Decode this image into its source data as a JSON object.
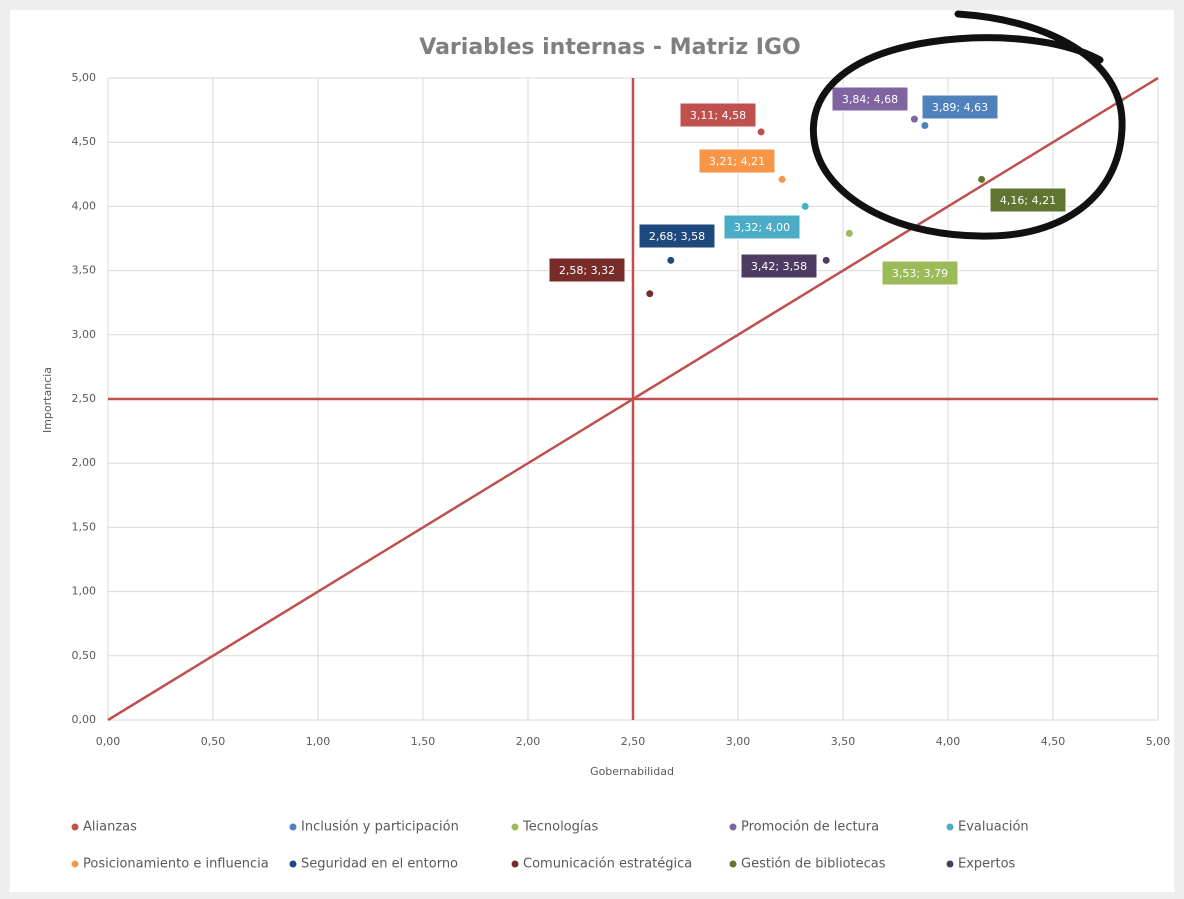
{
  "chart_data": {
    "type": "scatter",
    "title": "Variables internas - Matriz IGO",
    "xlabel": "Gobernabilidad",
    "ylabel": "Importancia",
    "xlim": [
      0,
      5
    ],
    "ylim": [
      0,
      5
    ],
    "xticks": [
      {
        "value": 0,
        "label": "0,00"
      },
      {
        "value": 0.5,
        "label": "0,50"
      },
      {
        "value": 1,
        "label": "1,00"
      },
      {
        "value": 1.5,
        "label": "1,50"
      },
      {
        "value": 2,
        "label": "2,00"
      },
      {
        "value": 2.5,
        "label": "2,50"
      },
      {
        "value": 3,
        "label": "3,00"
      },
      {
        "value": 3.5,
        "label": "3,50"
      },
      {
        "value": 4,
        "label": "4,00"
      },
      {
        "value": 4.5,
        "label": "4,50"
      },
      {
        "value": 5,
        "label": "5,00"
      }
    ],
    "yticks": [
      {
        "value": 0,
        "label": "0,00"
      },
      {
        "value": 0.5,
        "label": "0,50"
      },
      {
        "value": 1,
        "label": "1,00"
      },
      {
        "value": 1.5,
        "label": "1,50"
      },
      {
        "value": 2,
        "label": "2,00"
      },
      {
        "value": 2.5,
        "label": "2,50"
      },
      {
        "value": 3,
        "label": "3,00"
      },
      {
        "value": 3.5,
        "label": "3,50"
      },
      {
        "value": 4,
        "label": "4,00"
      },
      {
        "value": 4.5,
        "label": "4,50"
      },
      {
        "value": 5,
        "label": "5,00"
      }
    ],
    "grid": true,
    "legend": "bottom",
    "reference_lines": [
      {
        "color": "#c0504d",
        "x": [
          0,
          5
        ],
        "y": [
          0,
          5
        ]
      },
      {
        "color": "#c0504d",
        "x": [
          2.5,
          2.5
        ],
        "y": [
          0,
          5
        ]
      },
      {
        "color": "#c0504d",
        "x": [
          0,
          5
        ],
        "y": [
          2.5,
          2.5
        ]
      }
    ],
    "series": [
      {
        "name": "Alianzas",
        "color": "#c0504d",
        "x": [
          3.11
        ],
        "values": [
          4.58
        ],
        "value_labels": [
          "3,11; 4,58"
        ]
      },
      {
        "name": "Inclusión y participación",
        "color": "#4f81bd",
        "x": [
          3.89
        ],
        "values": [
          4.63
        ],
        "value_labels": [
          "3,89; 4,63"
        ]
      },
      {
        "name": "Tecnologías",
        "color": "#9bbb59",
        "x": [
          3.53
        ],
        "values": [
          3.79
        ],
        "value_labels": [
          "3,53; 3,79"
        ]
      },
      {
        "name": "Promoción de lectura",
        "color": "#8064a2",
        "x": [
          3.84
        ],
        "values": [
          4.68
        ],
        "value_labels": [
          "3,84; 4,68"
        ]
      },
      {
        "name": "Evaluación",
        "color": "#4bacc6",
        "x": [
          3.32
        ],
        "values": [
          4.0
        ],
        "value_labels": [
          "3,32; 4,00"
        ]
      },
      {
        "name": "Posicionamiento e influencia",
        "color": "#f79646",
        "x": [
          3.21
        ],
        "values": [
          4.21
        ],
        "value_labels": [
          "3,21; 4,21"
        ]
      },
      {
        "name": "Seguridad en el entorno",
        "color": "#1f497d",
        "x": [
          2.68
        ],
        "values": [
          3.58
        ],
        "value_labels": [
          "2,68; 3,58"
        ]
      },
      {
        "name": "Comunicación estratégica",
        "color": "#772c2a",
        "x": [
          2.58
        ],
        "values": [
          3.32
        ],
        "value_labels": [
          "2,58; 3,32"
        ]
      },
      {
        "name": "Gestión de bibliotecas",
        "color": "#5f7530",
        "x": [
          4.16
        ],
        "values": [
          4.21
        ],
        "value_labels": [
          "4,16; 4,21"
        ]
      },
      {
        "name": "Expertos",
        "color": "#4d3b62",
        "x": [
          3.42
        ],
        "values": [
          3.58
        ],
        "value_labels": [
          "3,42; 3,58"
        ]
      }
    ]
  }
}
